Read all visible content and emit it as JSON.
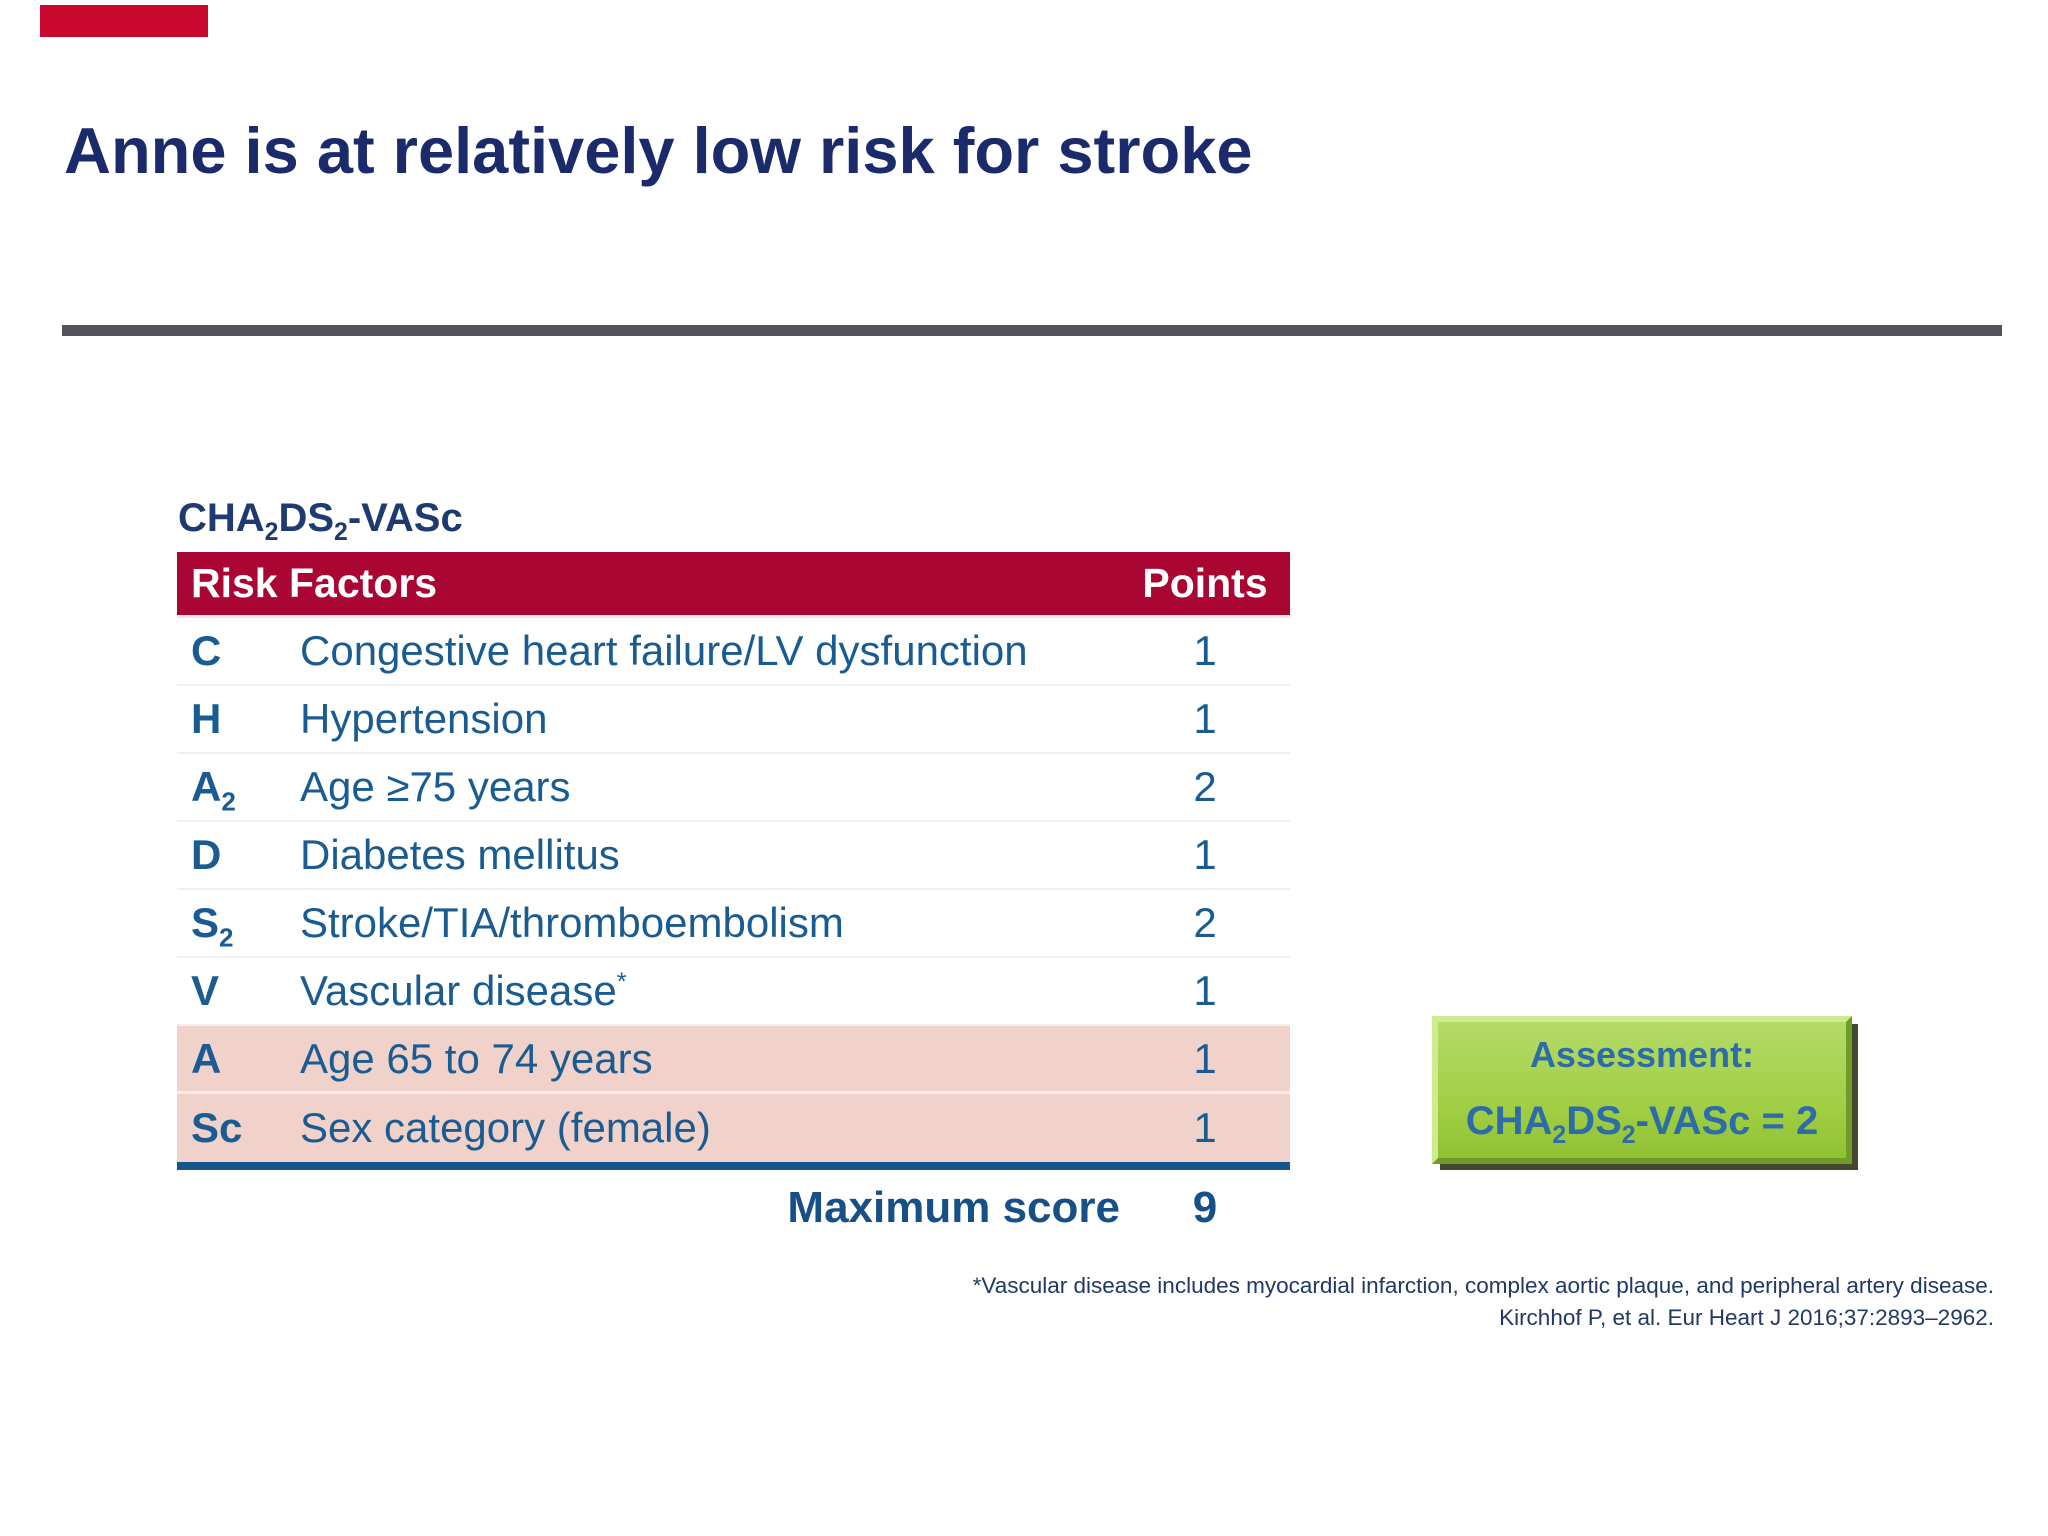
{
  "slide": {
    "title": "Anne is at relatively low risk for stroke"
  },
  "score_heading": {
    "p0": "CHA",
    "s0": "2",
    "p1": "DS",
    "s1": "2",
    "p2": "-VASc"
  },
  "table": {
    "header": {
      "risk_factors": "Risk Factors",
      "points": "Points"
    },
    "rows": [
      {
        "key": "C",
        "key_sub": "",
        "label": "Congestive heart failure/LV dysfunction",
        "sup": "",
        "points": "1",
        "highlight": false
      },
      {
        "key": "H",
        "key_sub": "",
        "label": "Hypertension",
        "sup": "",
        "points": "1",
        "highlight": false
      },
      {
        "key": "A",
        "key_sub": "2",
        "label": "Age ≥75 years",
        "sup": "",
        "points": "2",
        "highlight": false
      },
      {
        "key": "D",
        "key_sub": "",
        "label": "Diabetes mellitus",
        "sup": "",
        "points": "1",
        "highlight": false
      },
      {
        "key": "S",
        "key_sub": "2",
        "label": "Stroke/TIA/thromboembolism",
        "sup": "",
        "points": "2",
        "highlight": false
      },
      {
        "key": "V",
        "key_sub": "",
        "label": "Vascular disease",
        "sup": "*",
        "points": "1",
        "highlight": false
      },
      {
        "key": "A",
        "key_sub": "",
        "label": "Age 65 to 74 years",
        "sup": "",
        "points": "1",
        "highlight": true
      },
      {
        "key": "Sc",
        "key_sub": "",
        "label": "Sex category (female)",
        "sup": "",
        "points": "1",
        "highlight": true
      }
    ],
    "footer": {
      "label": "Maximum score",
      "value": "9"
    }
  },
  "assessment": {
    "heading": "Assessment:",
    "score": {
      "p0": "CHA",
      "s0": "2",
      "p1": "DS",
      "s1": "2",
      "p2": "-VASc = 2"
    }
  },
  "footnotes": [
    "*Vascular disease includes myocardial infarction, complex aortic plaque, and peripheral artery disease.",
    "Kirchhof P, et al. Eur Heart J 2016;37:2893–2962."
  ],
  "colors": {
    "accent_red": "#C9082D",
    "title_navy": "#1B2A6B",
    "divider_gray": "#54555A",
    "heading_navy": "#1F3A70",
    "header_bg": "#AA0634",
    "header_text": "#FFFFFF",
    "row_blue": "#1A5C91",
    "total_navy": "#174F87",
    "highlight_pink": "#F0D2CB",
    "rule_blue": "#14578F",
    "box_green": "#9ECC41",
    "box_green_light": "#B4DB67",
    "box_bevel_light": "#CDEB90",
    "box_bevel_dark": "#6F9D2C",
    "box_text_blue": "#2E6CA8",
    "footnote_navy": "#1F3864"
  }
}
